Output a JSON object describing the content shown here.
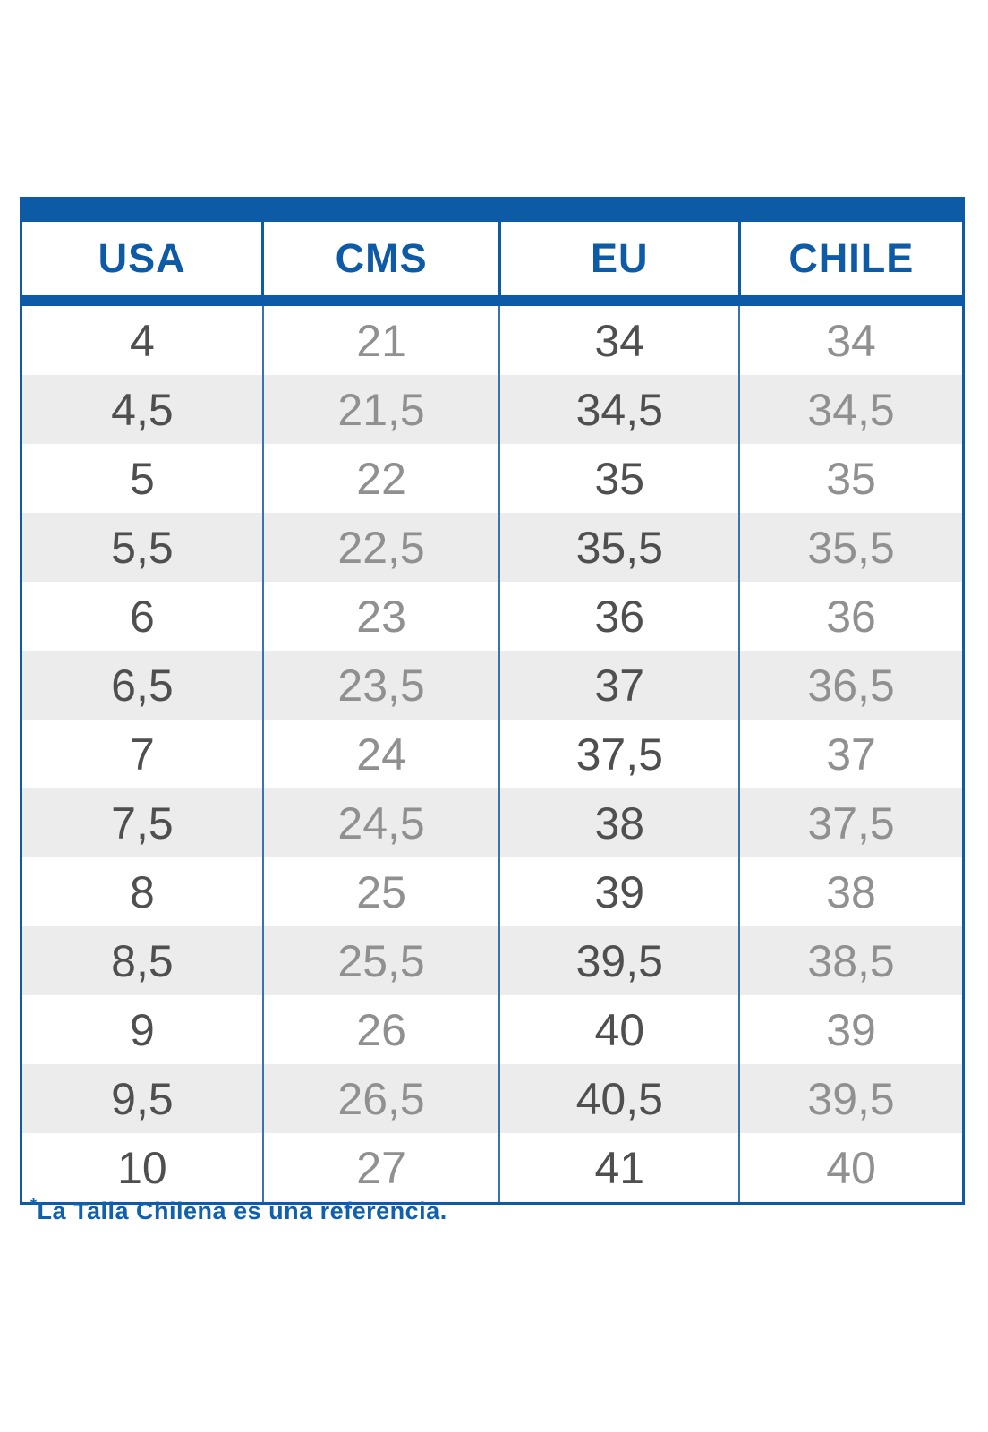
{
  "chart_data": {
    "type": "table",
    "title": "",
    "columns": [
      "USA",
      "CMS",
      "EU",
      "CHILE"
    ],
    "rows": [
      [
        "4",
        "21",
        "34",
        "34"
      ],
      [
        "4,5",
        "21,5",
        "34,5",
        "34,5"
      ],
      [
        "5",
        "22",
        "35",
        "35"
      ],
      [
        "5,5",
        "22,5",
        "35,5",
        "35,5"
      ],
      [
        "6",
        "23",
        "36",
        "36"
      ],
      [
        "6,5",
        "23,5",
        "37",
        "36,5"
      ],
      [
        "7",
        "24",
        "37,5",
        "37"
      ],
      [
        "7,5",
        "24,5",
        "38",
        "37,5"
      ],
      [
        "8",
        "25",
        "39",
        "38"
      ],
      [
        "8,5",
        "25,5",
        "39,5",
        "38,5"
      ],
      [
        "9",
        "26",
        "40",
        "39"
      ],
      [
        "9,5",
        "26,5",
        "40,5",
        "39,5"
      ],
      [
        "10",
        "27",
        "41",
        "40"
      ]
    ],
    "layout_hints": {
      "striped_rows": true,
      "stripe_color": "#ececec",
      "header_text_color": "#0d5aa7",
      "dark_value_columns": [
        "USA",
        "EU"
      ],
      "light_value_columns": [
        "CMS",
        "CHILE"
      ]
    }
  },
  "colors": {
    "accent_blue": "#0d5aa7",
    "separator_blue": "#3a72ab",
    "stripe_gray": "#ececec",
    "value_dark_gray": "#4f4f4f",
    "value_light_gray": "#909090",
    "footnote_blue": "#1060ae"
  },
  "footnote": {
    "marker": "*",
    "text": "La Talla Chilena es una referencia."
  }
}
